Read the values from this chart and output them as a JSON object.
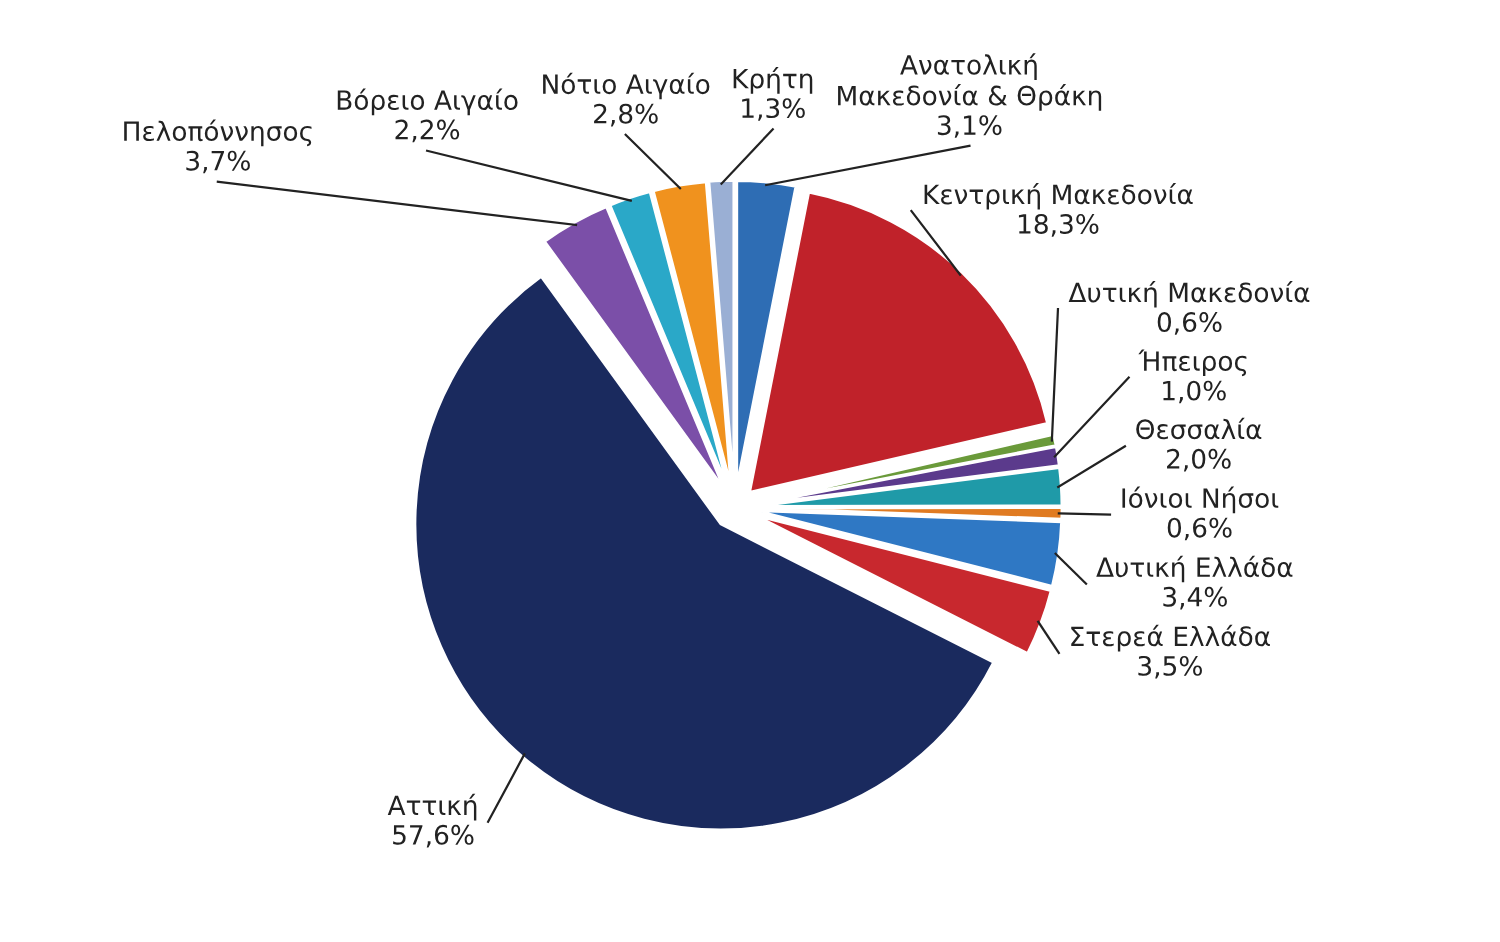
{
  "chart_data": {
    "type": "pie",
    "categories": [
      "Ανατολική\nΜακεδονία & Θράκη",
      "Κεντρική Μακεδονία",
      "Δυτική Μακεδονία",
      "Ήπειρος",
      "Θεσσαλία",
      "Ιόνιοι Νήσοι",
      "Δυτική Ελλάδα",
      "Στερεά Ελλάδα",
      "Αττική",
      "Πελοπόννησος",
      "Βόρειο Αιγαίο",
      "Νότιο Αιγαίο",
      "Κρήτη"
    ],
    "values": [
      3.1,
      18.3,
      0.6,
      1.0,
      2.0,
      0.6,
      3.4,
      3.5,
      57.6,
      3.7,
      2.2,
      2.8,
      1.3
    ],
    "value_labels": [
      "3,1%",
      "18,3%",
      "0,6%",
      "1,0%",
      "2,0%",
      "0,6%",
      "3,4%",
      "3,5%",
      "57,6%",
      "3,7%",
      "2,2%",
      "2,8%",
      "1,3%"
    ],
    "colors": [
      "#2e6db4",
      "#c0222a",
      "#6a9a3a",
      "#5b3a8c",
      "#1f9aa8",
      "#e07b22",
      "#2f78c4",
      "#c8282e",
      "#1a2a5e",
      "#7b4fa8",
      "#2aa8c8",
      "#f0921e",
      "#9aafd4"
    ],
    "legend": false
  }
}
